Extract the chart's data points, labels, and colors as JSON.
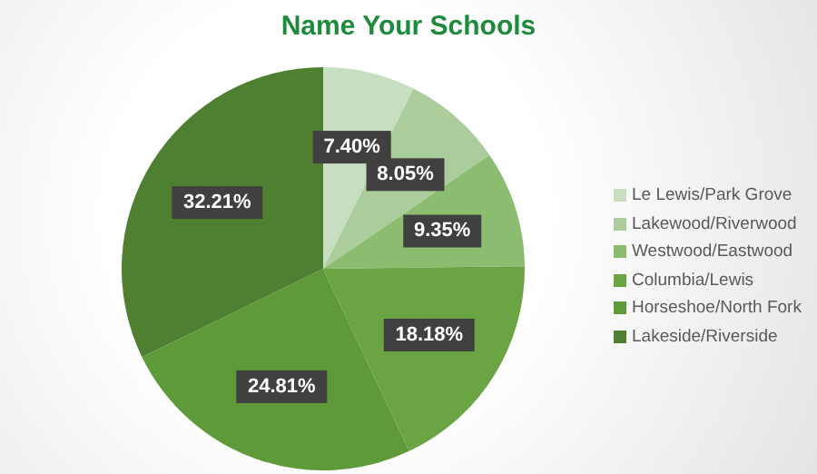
{
  "chart_data": {
    "type": "pie",
    "title": "Name Your Schools",
    "categories": [
      "Le Lewis/Park Grove",
      "Lakewood/Riverwood",
      "Westwood/Eastwood",
      "Columbia/Lewis",
      "Horseshoe/North Fork",
      "Lakeside/Riverside"
    ],
    "values": [
      7.4,
      8.05,
      9.35,
      18.18,
      24.81,
      32.21
    ],
    "value_labels": [
      "7.40%",
      "8.05%",
      "9.35%",
      "18.18%",
      "24.81%",
      "32.21%"
    ],
    "colors": [
      "#c8dec0",
      "#abcd9b",
      "#8bbc6f",
      "#6aa443",
      "#5e9a3a",
      "#4f7f31"
    ],
    "legend": "right"
  }
}
